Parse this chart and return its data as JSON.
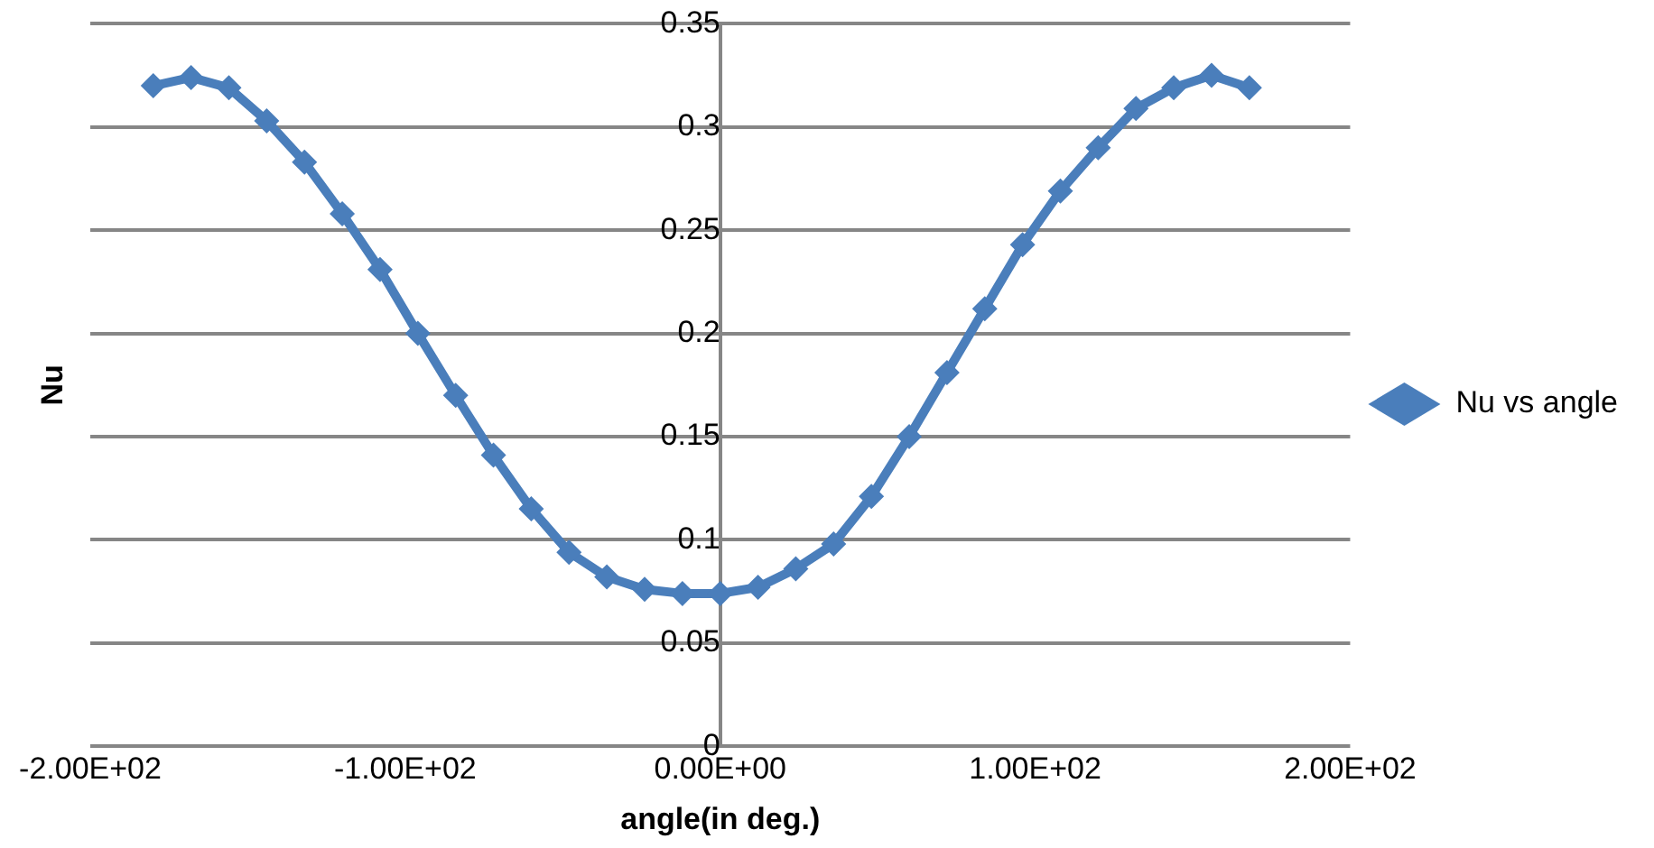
{
  "chart_data": {
    "type": "line",
    "xlabel": "angle(in deg.)",
    "ylabel": "Nu",
    "x": [
      -180,
      -168,
      -156,
      -144,
      -132,
      -120,
      -108,
      -96,
      -84,
      -72,
      -60,
      -48,
      -36,
      -24,
      -12,
      0,
      12,
      24,
      36,
      48,
      60,
      72,
      84,
      96,
      108,
      120,
      132,
      144,
      156,
      168
    ],
    "series": [
      {
        "name": "Nu vs angle",
        "color": "#4a7ebb",
        "values": [
          0.32,
          0.324,
          0.319,
          0.303,
          0.283,
          0.258,
          0.231,
          0.2,
          0.17,
          0.141,
          0.115,
          0.094,
          0.082,
          0.076,
          0.074,
          0.074,
          0.077,
          0.086,
          0.098,
          0.121,
          0.15,
          0.181,
          0.212,
          0.243,
          0.269,
          0.29,
          0.309,
          0.319,
          0.325,
          0.319
        ]
      }
    ],
    "xlim": [
      -200,
      200
    ],
    "xticks": [
      {
        "value": -200,
        "label": "-2.00E+02"
      },
      {
        "value": -100,
        "label": "-1.00E+02"
      },
      {
        "value": 0,
        "label": "0.00E+00"
      },
      {
        "value": 100,
        "label": "1.00E+02"
      },
      {
        "value": 200,
        "label": "2.00E+02"
      }
    ],
    "ylim": [
      0,
      0.35
    ],
    "yticks": [
      0,
      0.05,
      0.1,
      0.15,
      0.2,
      0.25,
      0.3,
      0.35
    ],
    "grid": "y",
    "legend": "right",
    "marker": "diamond",
    "line_style": "solid"
  }
}
